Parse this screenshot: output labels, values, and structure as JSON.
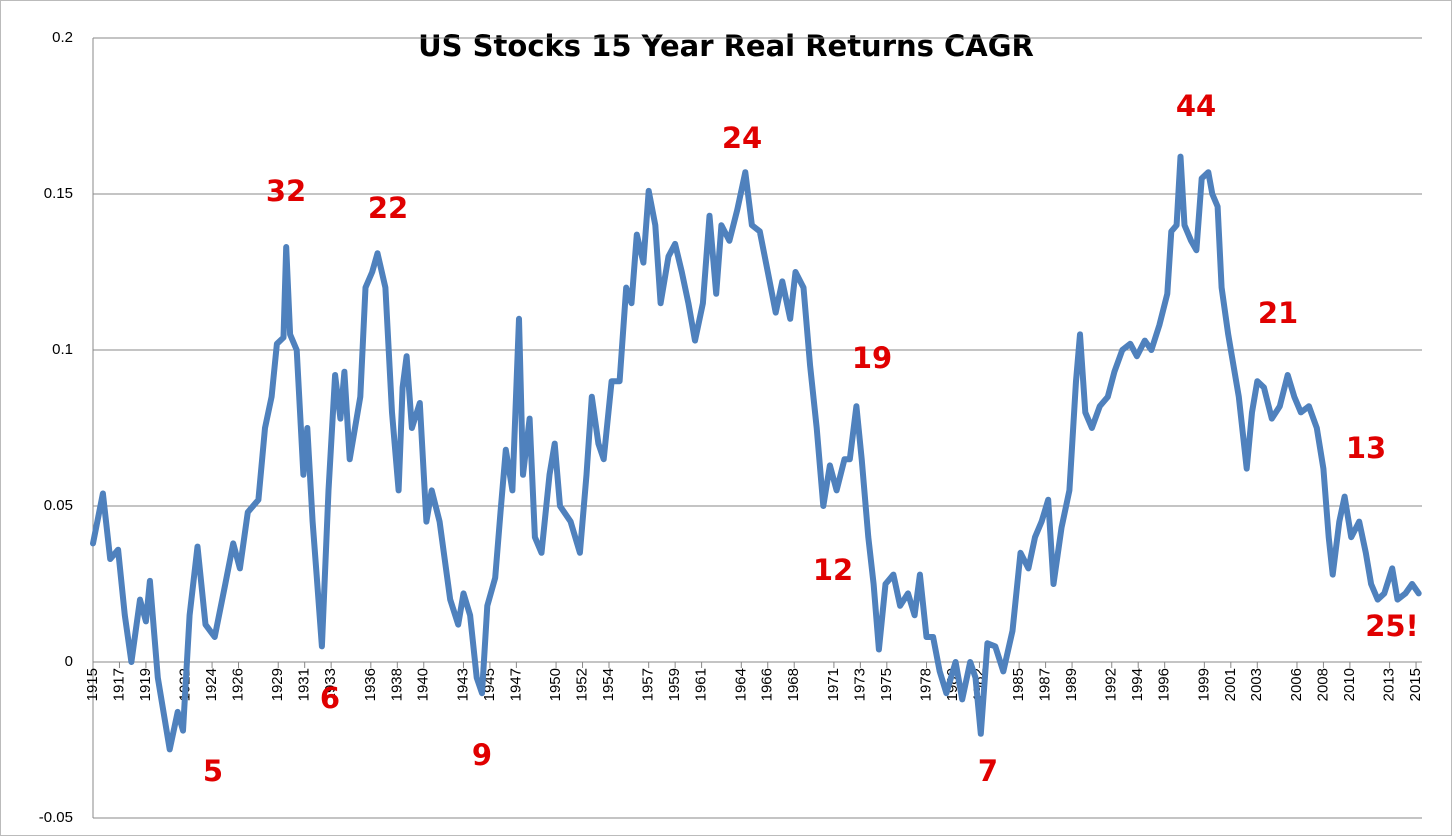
{
  "chart_data": {
    "type": "line",
    "title": "US Stocks 15 Year Real Returns CAGR",
    "x": [
      1915.0,
      1915.75,
      1916.3,
      1916.9,
      1917.4,
      1917.9,
      1918.55,
      1919.0,
      1919.3,
      1919.9,
      1920.8,
      1921.4,
      1921.8,
      1922.3,
      1922.9,
      1923.5,
      1924.2,
      1925.0,
      1925.6,
      1926.1,
      1926.7,
      1927.5,
      1928.0,
      1928.5,
      1928.9,
      1929.4,
      1929.6,
      1929.9,
      1930.4,
      1930.9,
      1931.2,
      1931.6,
      1931.9,
      1932.3,
      1932.8,
      1933.3,
      1933.7,
      1934.0,
      1934.4,
      1935.2,
      1935.6,
      1936.1,
      1936.5,
      1937.1,
      1937.6,
      1938.1,
      1938.4,
      1938.7,
      1939.1,
      1939.7,
      1940.2,
      1940.6,
      1941.2,
      1942.0,
      1942.6,
      1943.0,
      1943.5,
      1944.0,
      1944.4,
      1944.8,
      1945.4,
      1945.8,
      1946.2,
      1946.7,
      1947.2,
      1947.5,
      1948.0,
      1948.4,
      1948.9,
      1949.5,
      1949.9,
      1950.3,
      1951.1,
      1951.8,
      1952.3,
      1952.7,
      1953.2,
      1953.6,
      1954.2,
      1954.8,
      1955.3,
      1955.7,
      1956.1,
      1956.6,
      1957.0,
      1957.5,
      1957.9,
      1958.5,
      1959.0,
      1959.5,
      1960.0,
      1960.5,
      1961.1,
      1961.6,
      1962.1,
      1962.5,
      1963.1,
      1963.7,
      1964.3,
      1964.8,
      1965.4,
      1966.0,
      1966.6,
      1967.1,
      1967.7,
      1968.1,
      1968.7,
      1969.2,
      1969.7,
      1970.2,
      1970.7,
      1971.2,
      1971.8,
      1972.2,
      1972.7,
      1973.1,
      1973.6,
      1974.0,
      1974.4,
      1974.9,
      1975.5,
      1976.0,
      1976.6,
      1977.1,
      1977.5,
      1978.0,
      1978.5,
      1979.0,
      1979.5,
      1980.2,
      1980.7,
      1981.3,
      1981.7,
      1982.1,
      1982.6,
      1983.2,
      1983.8,
      1984.5,
      1985.1,
      1985.7,
      1986.2,
      1986.7,
      1987.2,
      1987.6,
      1988.2,
      1988.8,
      1989.3,
      1989.6,
      1990.0,
      1990.5,
      1991.1,
      1991.7,
      1992.2,
      1992.8,
      1993.4,
      1993.9,
      1994.5,
      1995.0,
      1995.6,
      1996.2,
      1996.5,
      1996.9,
      1997.2,
      1997.5,
      1998.0,
      1998.4,
      1998.8,
      1999.3,
      1999.6,
      2000.0,
      2000.3,
      2000.8,
      2001.2,
      2001.6,
      2002.2,
      2002.6,
      2003.0,
      2003.5,
      2004.1,
      2004.7,
      2005.3,
      2005.8,
      2006.3,
      2006.9,
      2007.5,
      2008.0,
      2008.4,
      2008.7,
      2009.2,
      2009.6,
      2010.1,
      2010.7,
      2011.2,
      2011.6,
      2012.1,
      2012.6,
      2013.2,
      2013.6,
      2014.2,
      2014.7,
      2015.2
    ],
    "series": [
      {
        "name": "15 Year Real Returns CAGR",
        "color": "#4f81bd",
        "values": [
          0.038,
          0.054,
          0.033,
          0.036,
          0.015,
          0.0,
          0.02,
          0.013,
          0.026,
          -0.005,
          -0.028,
          -0.016,
          -0.022,
          0.015,
          0.037,
          0.012,
          0.008,
          0.025,
          0.038,
          0.03,
          0.048,
          0.052,
          0.075,
          0.085,
          0.102,
          0.104,
          0.133,
          0.105,
          0.1,
          0.06,
          0.075,
          0.045,
          0.028,
          0.005,
          0.055,
          0.092,
          0.078,
          0.093,
          0.065,
          0.085,
          0.12,
          0.125,
          0.131,
          0.12,
          0.08,
          0.055,
          0.088,
          0.098,
          0.075,
          0.083,
          0.045,
          0.055,
          0.045,
          0.02,
          0.012,
          0.022,
          0.015,
          -0.005,
          -0.01,
          0.018,
          0.027,
          0.048,
          0.068,
          0.055,
          0.11,
          0.06,
          0.078,
          0.04,
          0.035,
          0.06,
          0.07,
          0.05,
          0.045,
          0.035,
          0.06,
          0.085,
          0.07,
          0.065,
          0.09,
          0.09,
          0.12,
          0.115,
          0.137,
          0.128,
          0.151,
          0.14,
          0.115,
          0.13,
          0.134,
          0.125,
          0.115,
          0.103,
          0.115,
          0.143,
          0.118,
          0.14,
          0.135,
          0.145,
          0.157,
          0.14,
          0.138,
          0.125,
          0.112,
          0.122,
          0.11,
          0.125,
          0.12,
          0.095,
          0.075,
          0.05,
          0.063,
          0.055,
          0.065,
          0.065,
          0.082,
          0.065,
          0.04,
          0.025,
          0.004,
          0.025,
          0.028,
          0.018,
          0.022,
          0.015,
          0.028,
          0.008,
          0.008,
          -0.003,
          -0.01,
          0.0,
          -0.012,
          0.0,
          -0.005,
          -0.023,
          0.006,
          0.005,
          -0.003,
          0.01,
          0.035,
          0.03,
          0.04,
          0.045,
          0.052,
          0.025,
          0.043,
          0.055,
          0.09,
          0.105,
          0.08,
          0.075,
          0.082,
          0.085,
          0.093,
          0.1,
          0.102,
          0.098,
          0.103,
          0.1,
          0.108,
          0.118,
          0.138,
          0.14,
          0.162,
          0.14,
          0.135,
          0.132,
          0.155,
          0.157,
          0.15,
          0.146,
          0.12,
          0.105,
          0.095,
          0.085,
          0.062,
          0.08,
          0.09,
          0.088,
          0.078,
          0.082,
          0.092,
          0.085,
          0.08,
          0.082,
          0.075,
          0.062,
          0.04,
          0.028,
          0.045,
          0.053,
          0.04,
          0.045,
          0.035,
          0.025,
          0.02,
          0.022,
          0.03,
          0.02,
          0.022,
          0.025,
          0.022
        ]
      }
    ],
    "xlim": [
      1915,
      2015.45
    ],
    "xticks": [
      1915,
      1917,
      1919,
      1922,
      1924,
      1926,
      1929,
      1931,
      1933,
      1936,
      1938,
      1940,
      1943,
      1945,
      1947,
      1950,
      1952,
      1954,
      1957,
      1959,
      1961,
      1964,
      1966,
      1968,
      1971,
      1973,
      1975,
      1978,
      1980,
      1982,
      1985,
      1987,
      1989,
      1992,
      1994,
      1996,
      1999,
      2001,
      2003,
      2006,
      2008,
      2010,
      2013,
      2015
    ],
    "ylim": [
      -0.05,
      0.2
    ],
    "yticks": [
      -0.05,
      0,
      0.05,
      0.1,
      0.15,
      0.2
    ],
    "grid": true,
    "annotations": [
      "32",
      "22",
      "24",
      "44",
      "21",
      "19",
      "13",
      "12",
      "25!",
      "5",
      "6",
      "9",
      "7"
    ]
  }
}
